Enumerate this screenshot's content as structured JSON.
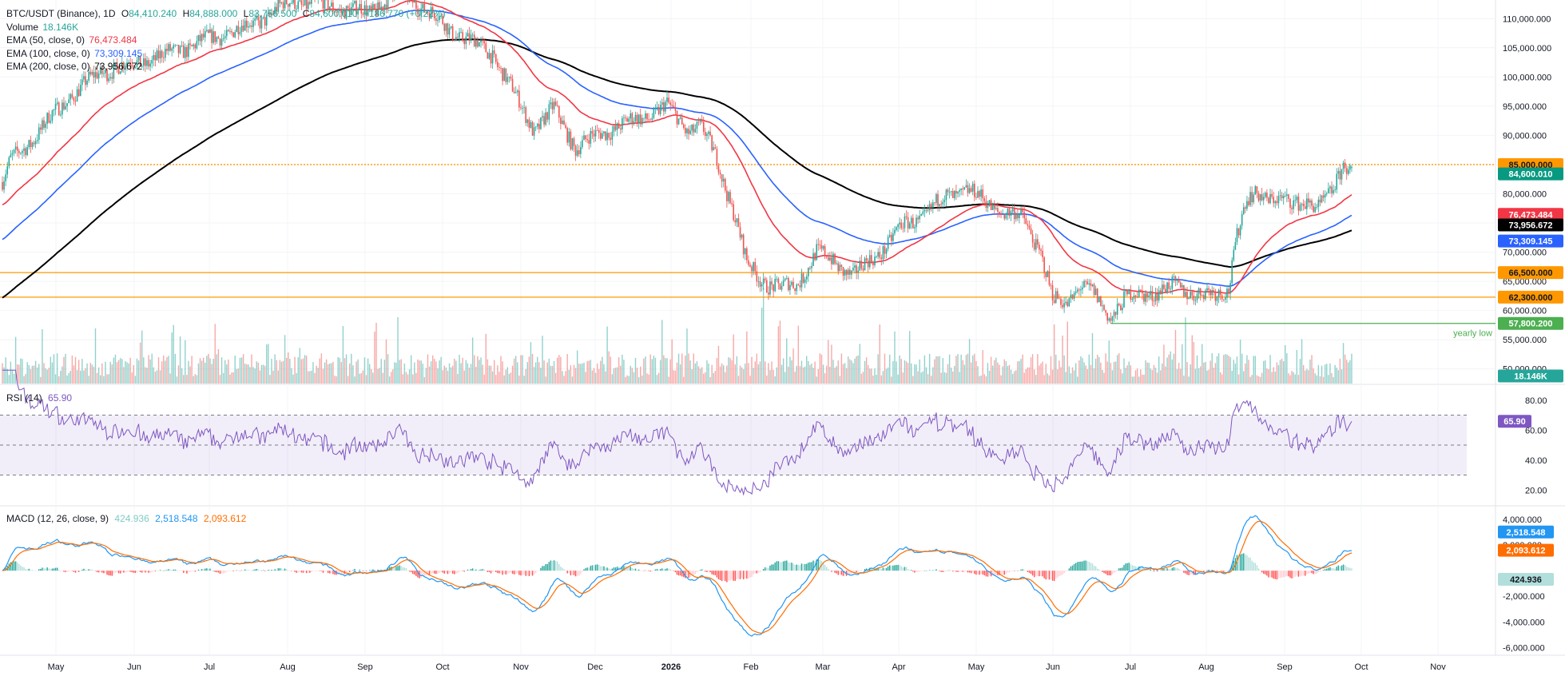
{
  "header": {
    "symbol": "BTC/USDT (Binance), 1D",
    "ohlc": {
      "o_label": "O",
      "o": "84,410.240",
      "h_label": "H",
      "h": "84,888.000",
      "l_label": "L",
      "l": "83,756.500",
      "c_label": "C",
      "c": "84,600.010",
      "chg": "+186.770 (+0.22%)"
    },
    "volume": {
      "label": "Volume",
      "value": "18.146K"
    },
    "ema50": {
      "label": "EMA (50, close, 0)",
      "value": "76,473.484"
    },
    "ema100": {
      "label": "EMA (100, close, 0)",
      "value": "73,309.145"
    },
    "ema200": {
      "label": "EMA (200, close, 0)",
      "value": "73,956.672"
    }
  },
  "colors": {
    "up": "#26a69a",
    "down": "#ef5350",
    "ema50": "#f23645",
    "ema100": "#2962ff",
    "ema200": "#000000",
    "level": "#ff9800",
    "yearly_low": "#4caf50",
    "rsi": "#7e57c2",
    "macd": "#2196f3",
    "signal": "#ff6d00"
  },
  "chart_data": [
    {
      "type": "candlestick",
      "x_labels": [
        "May",
        "Jun",
        "Jul",
        "Aug",
        "Sep",
        "Oct",
        "Nov",
        "Dec",
        "2026",
        "Feb",
        "Mar",
        "Apr",
        "May",
        "Jun",
        "Jul",
        "Aug",
        "Sep",
        "Oct",
        "Nov"
      ],
      "y_ticks": [
        "110,000.000",
        "105,000.000",
        "100,000.000",
        "95,000.000",
        "90,000.000",
        "85,000.000",
        "80,000.000",
        "75,000.000",
        "70,000.000",
        "65,000.000",
        "60,000.000",
        "55,000.000",
        "50,000.000"
      ],
      "ylim": [
        47500,
        112500
      ],
      "price_anchors": [
        [
          0,
          82000
        ],
        [
          5,
          85500
        ],
        [
          20,
          90000
        ],
        [
          40,
          96500
        ],
        [
          60,
          101000
        ],
        [
          90,
          103000
        ],
        [
          120,
          106000
        ],
        [
          150,
          109000
        ],
        [
          175,
          113000
        ],
        [
          200,
          112000
        ],
        [
          220,
          111000
        ],
        [
          240,
          115000
        ],
        [
          270,
          108000
        ],
        [
          295,
          104000
        ],
        [
          310,
          96000
        ],
        [
          320,
          91000
        ],
        [
          332,
          94500
        ],
        [
          345,
          88000
        ],
        [
          365,
          91000
        ],
        [
          385,
          93000
        ],
        [
          400,
          95000
        ],
        [
          412,
          91000
        ],
        [
          420,
          91500
        ],
        [
          430,
          86000
        ],
        [
          440,
          77000
        ],
        [
          448,
          68000
        ],
        [
          458,
          65000
        ],
        [
          468,
          63800
        ],
        [
          478,
          64500
        ],
        [
          490,
          70000
        ],
        [
          500,
          68500
        ],
        [
          512,
          66000
        ],
        [
          528,
          70000
        ],
        [
          540,
          74000
        ],
        [
          555,
          76500
        ],
        [
          568,
          79500
        ],
        [
          580,
          80800
        ],
        [
          592,
          78500
        ],
        [
          602,
          77000
        ],
        [
          615,
          75500
        ],
        [
          625,
          70000
        ],
        [
          632,
          62000
        ],
        [
          640,
          61000
        ],
        [
          648,
          64500
        ],
        [
          656,
          63000
        ],
        [
          662,
          60500
        ],
        [
          667,
          59000
        ],
        [
          675,
          62000
        ],
        [
          690,
          63000
        ],
        [
          705,
          64000
        ],
        [
          720,
          63000
        ],
        [
          730,
          62500
        ],
        [
          738,
          64000
        ],
        [
          742,
          72000
        ],
        [
          748,
          78000
        ],
        [
          755,
          80000
        ],
        [
          765,
          79500
        ],
        [
          775,
          78000
        ],
        [
          785,
          79000
        ],
        [
          793,
          77500
        ],
        [
          800,
          80000
        ],
        [
          805,
          84000
        ],
        [
          808,
          86000
        ],
        [
          810,
          84000
        ],
        [
          812,
          84600
        ]
      ],
      "levels": [
        {
          "value": 85000,
          "label": "85,000.000",
          "style": "dotted"
        },
        {
          "value": 66500,
          "label": "66,500.000",
          "style": "solid"
        },
        {
          "value": 62300,
          "label": "62,300.000",
          "style": "solid"
        },
        {
          "value": 57800,
          "label": "57,800.200",
          "style": "solid",
          "color_key": "yearly_low",
          "annotation": "yearly low"
        }
      ],
      "last": {
        "close": "84,600.010",
        "ema50": "76,473.484",
        "ema200": "73,956.672",
        "ema100": "73,309.145",
        "volume": "18.146K"
      }
    },
    {
      "type": "line",
      "name": "RSI (14)",
      "value": "65.90",
      "y_ticks": [
        "80.00",
        "60.00",
        "40.00",
        "20.00"
      ],
      "ylim": [
        10,
        90
      ],
      "bands": [
        70,
        50,
        30
      ]
    },
    {
      "type": "histogram",
      "name": "MACD (12, 26, close, 9)",
      "values": {
        "histogram": "424.936",
        "macd": "2,518.548",
        "signal": "2,093.612"
      },
      "y_ticks": [
        "4,000.000",
        "2,000.000",
        "0.000",
        "-2,000.000",
        "-4,000.000",
        "-6,000.000"
      ],
      "ylim": [
        -6600,
        5000
      ]
    }
  ],
  "panes": {
    "rsi_label": "RSI (14)",
    "macd_label": "MACD (12, 26, close, 9)"
  }
}
